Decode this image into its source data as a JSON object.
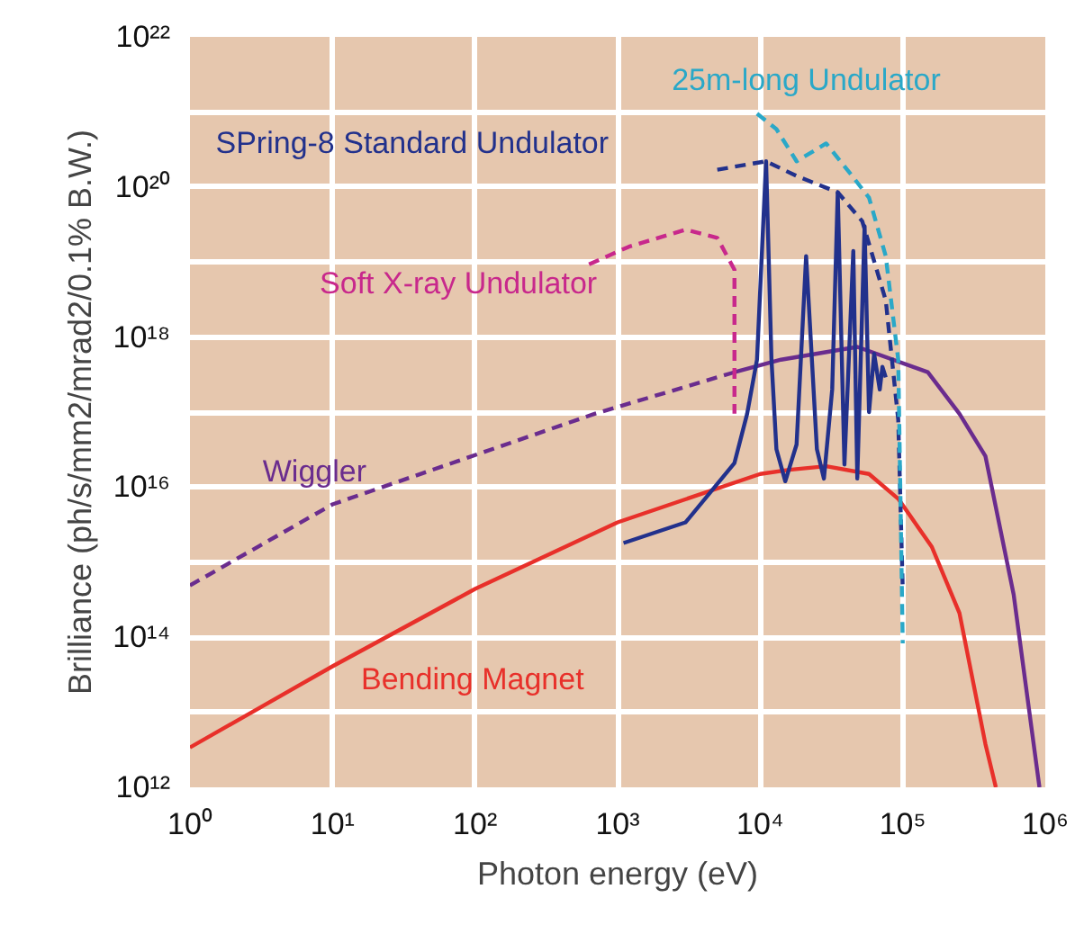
{
  "chart_data": {
    "type": "line",
    "xlabel": "Photon energy (eV)",
    "ylabel": "Brilliance (ph/s/mm2/mrad2/0.1% B.W.)",
    "log": "xy",
    "xlim": [
      1,
      1000000
    ],
    "ylim": [
      1000000000000.0,
      1e+22
    ],
    "xticks": [
      {
        "value": 1,
        "label": "10⁰"
      },
      {
        "value": 10,
        "label": "10¹"
      },
      {
        "value": 100,
        "label": "10²"
      },
      {
        "value": 1000,
        "label": "10³"
      },
      {
        "value": 10000,
        "label": "10⁴"
      },
      {
        "value": 100000,
        "label": "10⁵"
      },
      {
        "value": 1000000,
        "label": "10⁶"
      }
    ],
    "yticks": [
      {
        "value": 1000000000000.0,
        "label": "10¹²"
      },
      {
        "value": 10000000000000.0,
        "label": null
      },
      {
        "value": 100000000000000.0,
        "label": "10¹⁴"
      },
      {
        "value": 1000000000000000.0,
        "label": null
      },
      {
        "value": 1e+16,
        "label": "10¹⁶"
      },
      {
        "value": 1e+17,
        "label": null
      },
      {
        "value": 1e+18,
        "label": "10¹⁸"
      },
      {
        "value": 1e+19,
        "label": null
      },
      {
        "value": 1e+20,
        "label": "10²⁰"
      },
      {
        "value": 1e+21,
        "label": null
      },
      {
        "value": 1e+22,
        "label": "10²²"
      }
    ],
    "grid": true,
    "marker": "none",
    "series": [
      {
        "name": "Bending Magnet",
        "color": "#e8302a",
        "line_style": "solid",
        "x": [
          1,
          10,
          100,
          1000,
          10000,
          16000,
          29000,
          58000,
          93000,
          160000,
          250000,
          380000,
          450000
        ],
        "values": [
          3400000000000.0,
          41000000000000.0,
          440000000000000.0,
          3400000000000000.0,
          1.5e+16,
          1.7e+16,
          1.9e+16,
          1.5e+16,
          7000000000000000.0,
          1600000000000000.0,
          210000000000000.0,
          3800000000000.0,
          1000000000000.0
        ]
      },
      {
        "name": "Wiggler",
        "color": "#6a2c8e",
        "line_style": "dashed",
        "x": [
          1,
          10,
          690,
          6600
        ],
        "values": [
          490000000000000.0,
          5900000000000000.0,
          9.5e+16,
          3.4e+17
        ]
      },
      {
        "color": "#6a2c8e",
        "line_style": "solid",
        "x": [
          6600,
          14000,
          48000,
          150000,
          250000,
          380000,
          600000,
          910000
        ],
        "values": [
          3.4e+17,
          5e+17,
          7.4e+17,
          3.4e+17,
          9.5e+16,
          2.6e+16,
          370000000000000.0,
          1000000000000.0
        ]
      },
      {
        "name": "Soft X-ray Undulator",
        "color": "#c8288c",
        "line_style": "dashed",
        "x": [
          630,
          1200,
          3000,
          5000,
          6600,
          6600
        ],
        "values": [
          9.3e+18,
          1.6e+19,
          2.7e+19,
          2.1e+19,
          7.9e+18,
          9.5e+16
        ]
      },
      {
        "name": "SPring-8 Standard Undulator",
        "color": "#22318c",
        "line_style": "dashed",
        "x": [
          5000,
          11000,
          18000,
          35000,
          52000,
          76000,
          93000,
          100000
        ],
        "values": [
          1.7e+20,
          2.2e+20,
          1.4e+20,
          8.5e+19,
          3.5e+19,
          3.1e+18,
          7.9e+16,
          440000000000000.0
        ]
      },
      {
        "color": "#22318c",
        "line_style": "solid",
        "x": [
          1100,
          3000,
          6600,
          8100,
          9500,
          11000,
          12000,
          13000,
          15000,
          18000,
          21000,
          25000,
          28000,
          32000,
          35000,
          39000,
          45000,
          48000,
          54000,
          58000,
          63000,
          69000,
          72000,
          76000
        ],
        "values": [
          1800000000000000.0,
          3400000000000000.0,
          2.1e+16,
          9.5e+16,
          5e+17,
          2.2e+20,
          5e+17,
          3.2e+16,
          1.2e+16,
          3.7e+16,
          1.2e+19,
          3.2e+16,
          1.3e+16,
          2e+17,
          8.5e+19,
          2e+16,
          1.4e+19,
          1.3e+16,
          3e+19,
          1e+17,
          6e+17,
          2e+17,
          4e+17,
          2.9e+17
        ]
      },
      {
        "name": "25m-long Undulator",
        "color": "#2aa8c8",
        "line_style": "dashed",
        "x": [
          9500,
          13000,
          18000,
          29000,
          43000,
          58000,
          76000,
          93000,
          100000
        ],
        "values": [
          9.5e+20,
          5.9e+20,
          2.2e+20,
          3.8e+20,
          1.5e+20,
          7.2e+19,
          1.2e+19,
          5e+17,
          83000000000000.0
        ]
      }
    ]
  }
}
